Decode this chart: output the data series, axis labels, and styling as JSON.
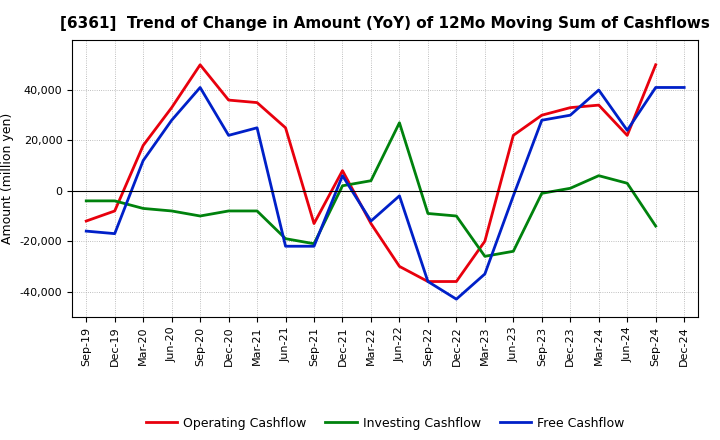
{
  "title": "[6361]  Trend of Change in Amount (YoY) of 12Mo Moving Sum of Cashflows",
  "ylabel": "Amount (million yen)",
  "x_labels": [
    "Sep-19",
    "Dec-19",
    "Mar-20",
    "Jun-20",
    "Sep-20",
    "Dec-20",
    "Mar-21",
    "Jun-21",
    "Sep-21",
    "Dec-21",
    "Mar-22",
    "Jun-22",
    "Sep-22",
    "Dec-22",
    "Mar-23",
    "Jun-23",
    "Sep-23",
    "Dec-23",
    "Mar-24",
    "Jun-24",
    "Sep-24",
    "Dec-24"
  ],
  "operating": [
    -12000,
    -8000,
    18000,
    33000,
    50000,
    36000,
    35000,
    25000,
    -13000,
    8000,
    -13000,
    -30000,
    -36000,
    -36000,
    -20000,
    22000,
    30000,
    33000,
    34000,
    22000,
    50000,
    null
  ],
  "investing": [
    -4000,
    -4000,
    -7000,
    -8000,
    -10000,
    -8000,
    -8000,
    -19000,
    -21000,
    2000,
    4000,
    27000,
    -9000,
    -10000,
    -26000,
    -24000,
    -1000,
    1000,
    6000,
    3000,
    -14000,
    null
  ],
  "free": [
    -16000,
    -17000,
    12000,
    28000,
    41000,
    22000,
    25000,
    -22000,
    -22000,
    6000,
    -12000,
    -2000,
    -36000,
    -43000,
    -33000,
    -2000,
    28000,
    30000,
    40000,
    24000,
    41000,
    41000
  ],
  "ylim": [
    -50000,
    60000
  ],
  "yticks": [
    -40000,
    -20000,
    0,
    20000,
    40000
  ],
  "colors": {
    "operating": "#e8000d",
    "investing": "#00820d",
    "free": "#0020c8"
  },
  "legend": [
    "Operating Cashflow",
    "Investing Cashflow",
    "Free Cashflow"
  ],
  "background": "#ffffff",
  "plot_background": "#ffffff",
  "title_fontsize": 11,
  "axis_fontsize": 8,
  "ylabel_fontsize": 9,
  "legend_fontsize": 9,
  "linewidth": 2.0
}
